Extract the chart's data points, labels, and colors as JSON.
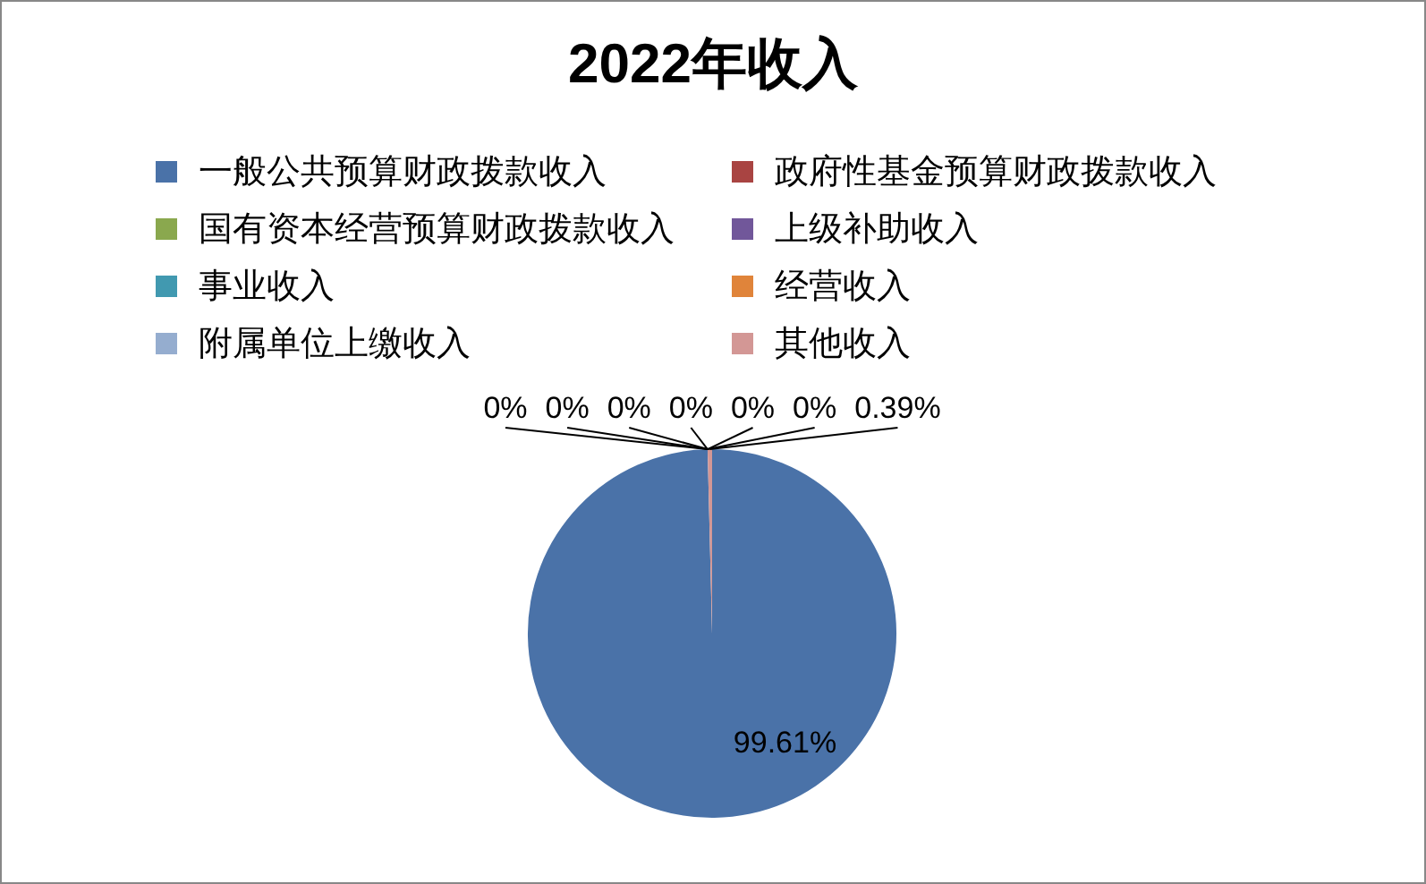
{
  "chart_data": {
    "type": "pie",
    "title": "2022年收入",
    "categories": [
      "一般公共预算财政拨款收入",
      "政府性基金预算财政拨款收入",
      "国有资本经营预算财政拨款收入",
      "上级补助收入",
      "事业收入",
      "经营收入",
      "附属单位上缴收入",
      "其他收入"
    ],
    "values": [
      99.61,
      0,
      0,
      0,
      0,
      0,
      0,
      0.39
    ],
    "colors": [
      "#4a72a8",
      "#a94442",
      "#8aa84e",
      "#71579a",
      "#4199b0",
      "#e0843a",
      "#95adcf",
      "#d39795"
    ],
    "value_labels": [
      "99.61%",
      "0%",
      "0%",
      "0%",
      "0%",
      "0%",
      "0%",
      "0.39%"
    ],
    "legend": "top"
  }
}
